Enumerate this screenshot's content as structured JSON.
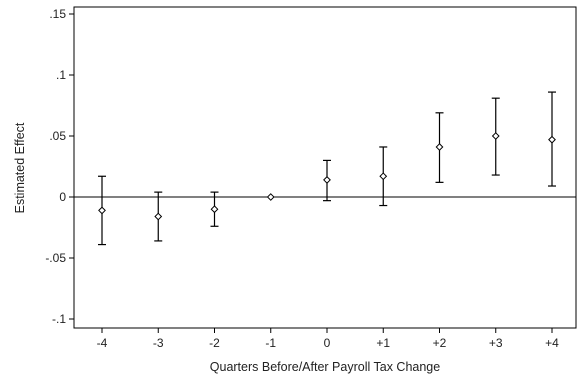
{
  "chart_data": {
    "type": "scatter",
    "title": "",
    "xlabel": "Quarters Before/After Payroll Tax Change",
    "ylabel": "Estimated Effect",
    "categories": [
      "-4",
      "-3",
      "-2",
      "-1",
      "0",
      "+1",
      "+2",
      "+3",
      "+4"
    ],
    "ylim": [
      -0.105,
      0.155
    ],
    "yticks": [
      0.15,
      0.1,
      0.05,
      0,
      -0.05,
      -0.1
    ],
    "ytick_labels": [
      ".15",
      ".1",
      ".05",
      "0",
      "-.05",
      "-.1"
    ],
    "reference_line": 0,
    "grid": false,
    "series": [
      {
        "points": [
          {
            "x": "-4",
            "estimate": -0.011,
            "ci_low": -0.039,
            "ci_high": 0.017
          },
          {
            "x": "-3",
            "estimate": -0.016,
            "ci_low": -0.036,
            "ci_high": 0.004
          },
          {
            "x": "-2",
            "estimate": -0.01,
            "ci_low": -0.024,
            "ci_high": 0.004
          },
          {
            "x": "-1",
            "estimate": 0.0,
            "ci_low": 0.0,
            "ci_high": 0.0
          },
          {
            "x": "0",
            "estimate": 0.014,
            "ci_low": -0.003,
            "ci_high": 0.03
          },
          {
            "x": "+1",
            "estimate": 0.017,
            "ci_low": -0.007,
            "ci_high": 0.041
          },
          {
            "x": "+2",
            "estimate": 0.041,
            "ci_low": 0.012,
            "ci_high": 0.069
          },
          {
            "x": "+3",
            "estimate": 0.05,
            "ci_low": 0.018,
            "ci_high": 0.081
          },
          {
            "x": "+4",
            "estimate": 0.047,
            "ci_low": 0.009,
            "ci_high": 0.086
          }
        ]
      }
    ]
  }
}
